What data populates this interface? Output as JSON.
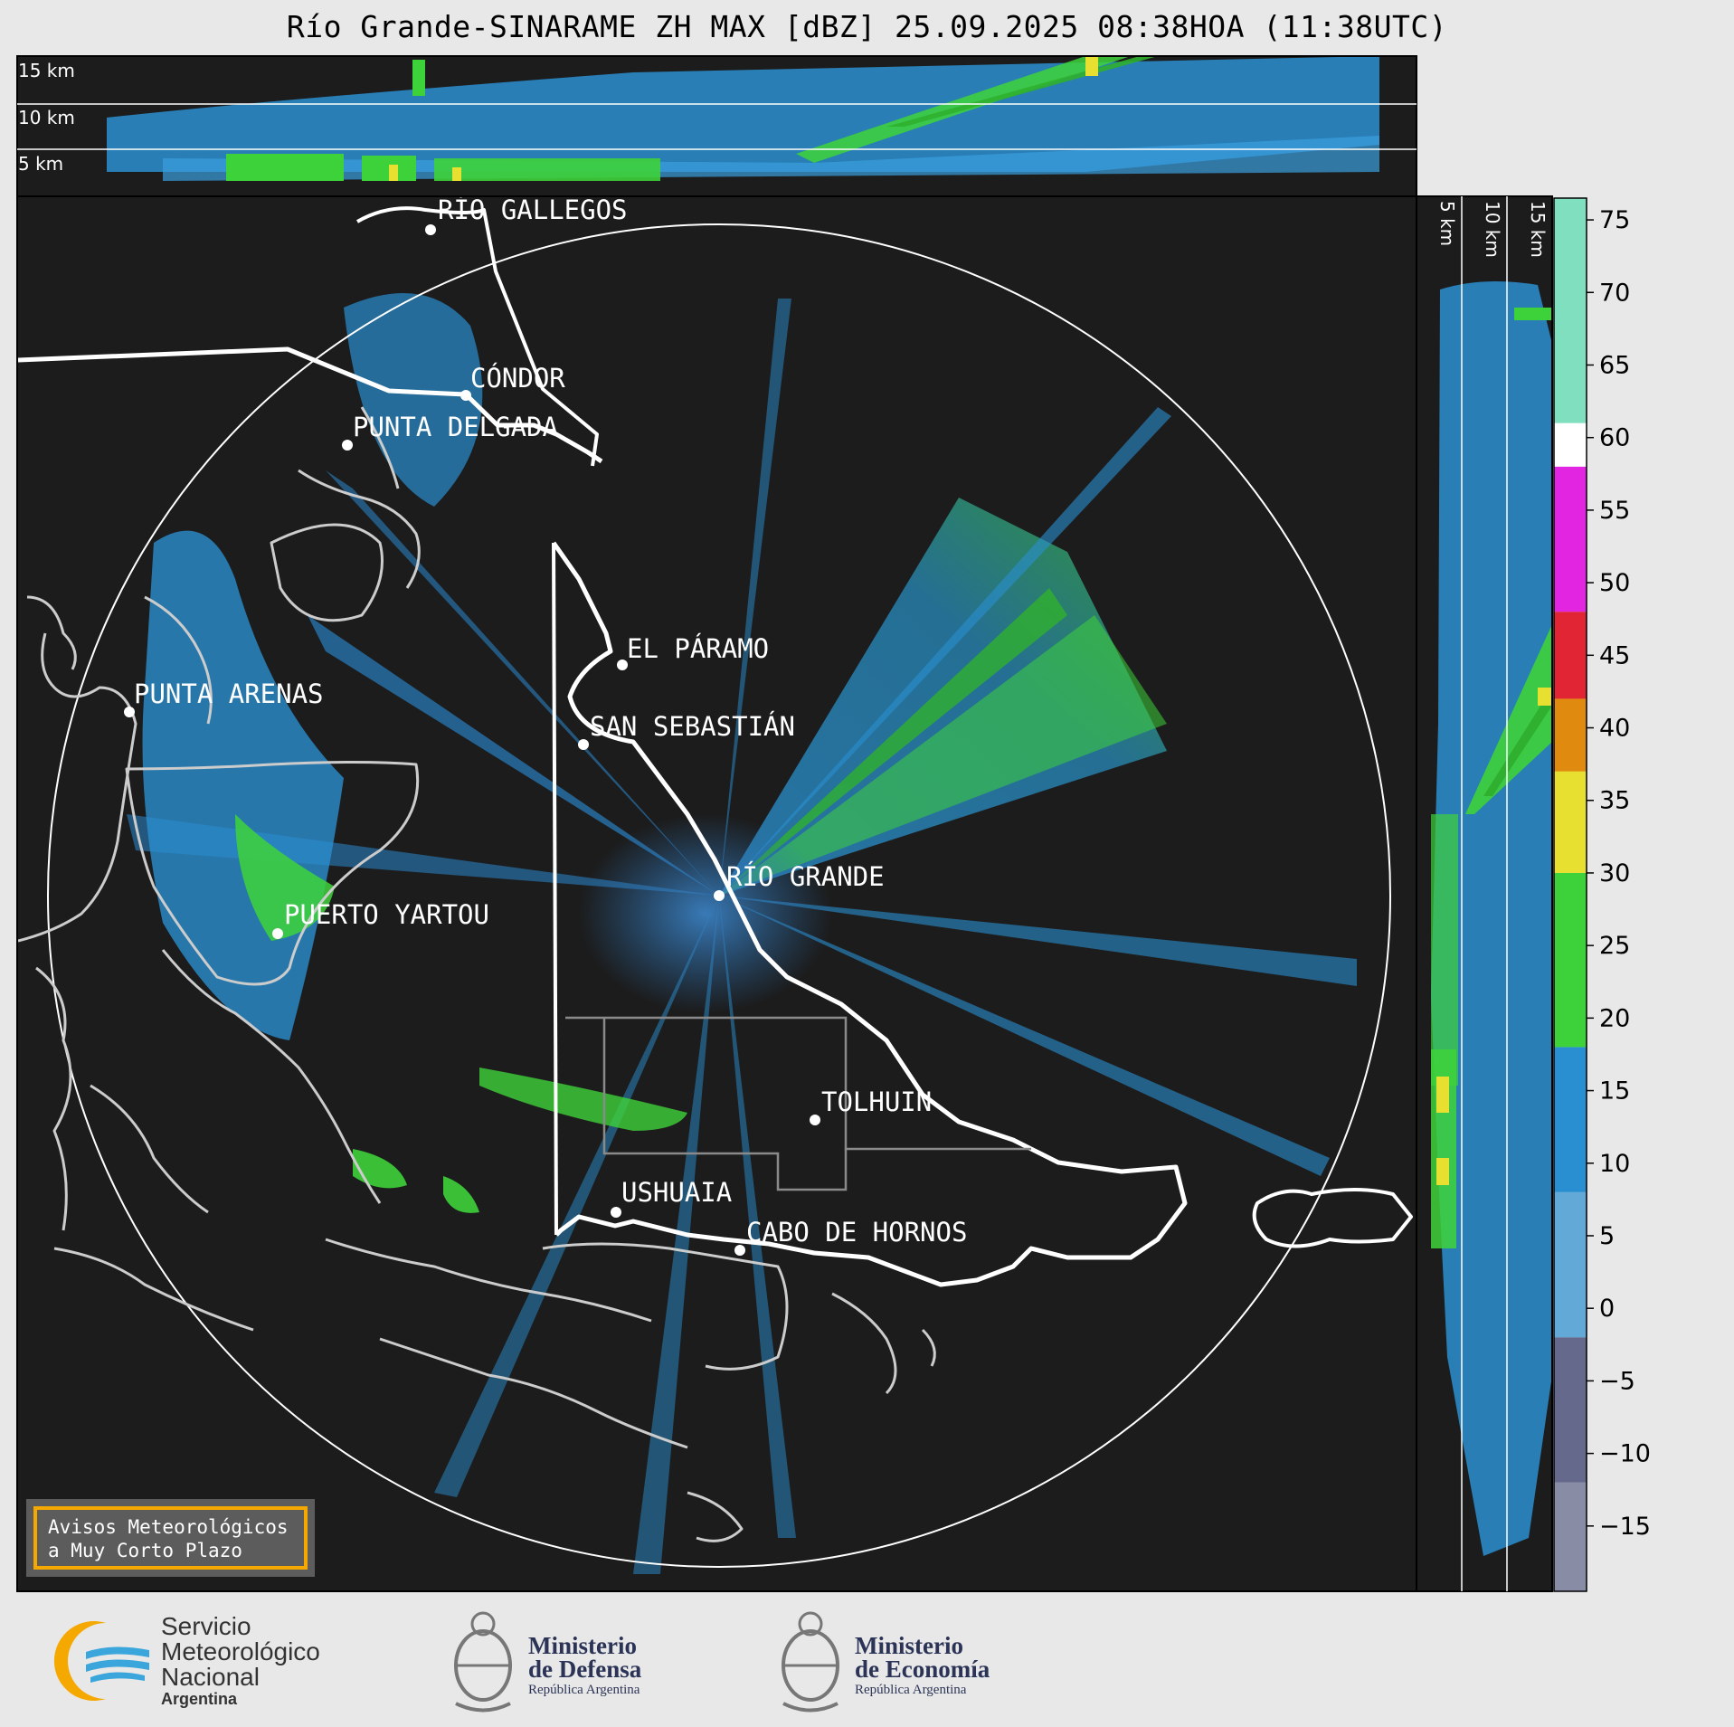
{
  "title": "Río Grande-SINARAME ZH MAX [dBZ] 25.09.2025 08:38HOA (11:38UTC)",
  "top_panel": {
    "altitude_labels": [
      "15 km",
      "10 km",
      "5 km"
    ]
  },
  "right_panel": {
    "altitude_labels": [
      "5 km",
      "10 km",
      "15 km"
    ]
  },
  "cities": [
    {
      "name": "RÍO GALLEGOS"
    },
    {
      "name": "CÓNDOR"
    },
    {
      "name": "PUNTA DELGADA"
    },
    {
      "name": "EL PÁRAMO"
    },
    {
      "name": "PUNTA ARENAS"
    },
    {
      "name": "SAN SEBASTIÁN"
    },
    {
      "name": "RÍO GRANDE"
    },
    {
      "name": "PUERTO YARTOU"
    },
    {
      "name": "TOLHUIN"
    },
    {
      "name": "USHUAIA"
    },
    {
      "name": "CABO DE HORNOS"
    }
  ],
  "colorbar": {
    "unit": "dBZ",
    "ticks": [
      "75",
      "70",
      "65",
      "60",
      "55",
      "50",
      "45",
      "40",
      "35",
      "30",
      "25",
      "20",
      "15",
      "10",
      "5",
      "0",
      "−5",
      "−10",
      "−15"
    ],
    "colors": {
      "low": "#3a3f6e",
      "blue": "#2a8fd0",
      "green": "#3ed23a",
      "yellow": "#e8e030",
      "orange": "#e08a10",
      "red": "#e01020",
      "magenta": "#e010e0",
      "white": "#ffffff",
      "teal": "#80dfbf"
    }
  },
  "alert_box": {
    "line1": "Avisos Meteorológicos",
    "line2": "a Muy Corto Plazo"
  },
  "footer": {
    "smn": {
      "line1": "Servicio",
      "line2": "Meteorológico",
      "line3": "Nacional",
      "line4": "Argentina"
    },
    "defensa": {
      "line1": "Ministerio",
      "line2": "de Defensa",
      "line3": "República Argentina"
    },
    "economia": {
      "line1": "Ministerio",
      "line2": "de Economía",
      "line3": "República Argentina"
    }
  }
}
